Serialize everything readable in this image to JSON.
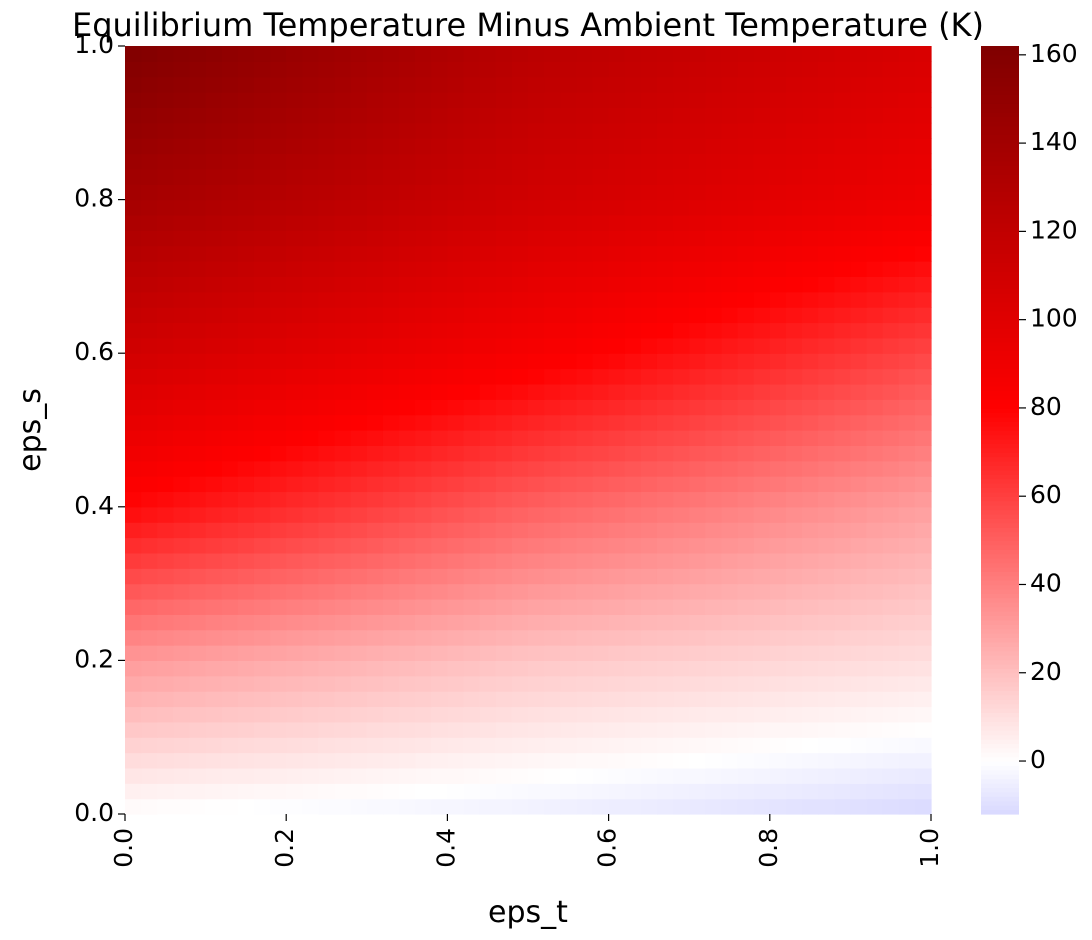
{
  "chart_data": {
    "type": "heatmap",
    "title": "Equilibrium Temperature Minus Ambient Temperature (K)",
    "xlabel": "eps_t",
    "ylabel": "eps_s",
    "xlim": [
      0.0,
      1.0
    ],
    "ylim": [
      0.0,
      1.0
    ],
    "x_ticks": [
      "0.0",
      "0.2",
      "0.4",
      "0.6",
      "0.8",
      "1.0"
    ],
    "y_ticks": [
      "0.0",
      "0.2",
      "0.4",
      "0.6",
      "0.8",
      "1.0"
    ],
    "colorbar": {
      "range": [
        -12,
        162
      ],
      "ticks": [
        "0",
        "20",
        "40",
        "60",
        "80",
        "100",
        "120",
        "140",
        "160"
      ],
      "colormap": "seismic-upper",
      "colors": {
        "min": "#d8d8ff",
        "zero": "#ffffff",
        "mid": "#ff0000",
        "max": "#800000"
      }
    },
    "grid": false,
    "sampled_values": {
      "eps_t": [
        0.0,
        0.5,
        1.0
      ],
      "eps_s": [
        0.0,
        0.2,
        0.4,
        0.6,
        0.8,
        1.0
      ],
      "z": [
        [
          0,
          -5,
          -12
        ],
        [
          32,
          18,
          10
        ],
        [
          78,
          50,
          30
        ],
        [
          110,
          85,
          58
        ],
        [
          138,
          110,
          90
        ],
        [
          162,
          125,
          105
        ]
      ]
    }
  }
}
